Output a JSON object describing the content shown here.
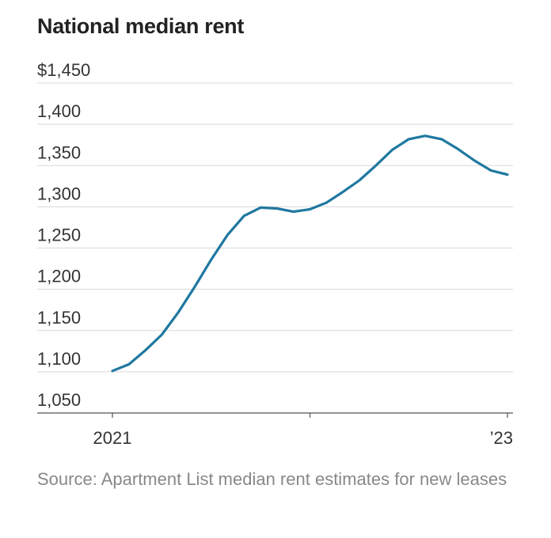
{
  "title": "National median rent",
  "source": "Source: Apartment List median rent estimates for new leases",
  "colors": {
    "line": "#1f78a0",
    "grid": "#d9d9d9",
    "axis": "#555555",
    "text": "#333333"
  },
  "chart_data": {
    "type": "line",
    "title": "National median rent",
    "xlabel": "",
    "ylabel": "",
    "ylim": [
      1050,
      1450
    ],
    "y_ticks": [
      1050,
      1100,
      1150,
      1200,
      1250,
      1300,
      1350,
      1400,
      1450
    ],
    "y_tick_labels": [
      "1,050",
      "1,100",
      "1,150",
      "1,200",
      "1,250",
      "1,300",
      "1,350",
      "1,400",
      "$1,450"
    ],
    "x_range": [
      "2021-01",
      "2023-01"
    ],
    "x_ticks": [
      "2021-01",
      "2022-01",
      "2023-01"
    ],
    "x_tick_labels": [
      "2021",
      "",
      "’23"
    ],
    "grid": true,
    "legend": "none",
    "series": [
      {
        "x": [
          "2021-01",
          "2021-02",
          "2021-03",
          "2021-04",
          "2021-05",
          "2021-06",
          "2021-07",
          "2021-08",
          "2021-09",
          "2021-10",
          "2021-11",
          "2021-12",
          "2022-01",
          "2022-02",
          "2022-03",
          "2022-04",
          "2022-05",
          "2022-06",
          "2022-07",
          "2022-08",
          "2022-09",
          "2022-10",
          "2022-11",
          "2022-12",
          "2023-01"
        ],
        "values": [
          1101,
          1109,
          1126,
          1145,
          1172,
          1203,
          1236,
          1266,
          1289,
          1299,
          1298,
          1294,
          1297,
          1305,
          1318,
          1332,
          1350,
          1369,
          1382,
          1386,
          1382,
          1370,
          1356,
          1344,
          1339
        ]
      }
    ]
  }
}
